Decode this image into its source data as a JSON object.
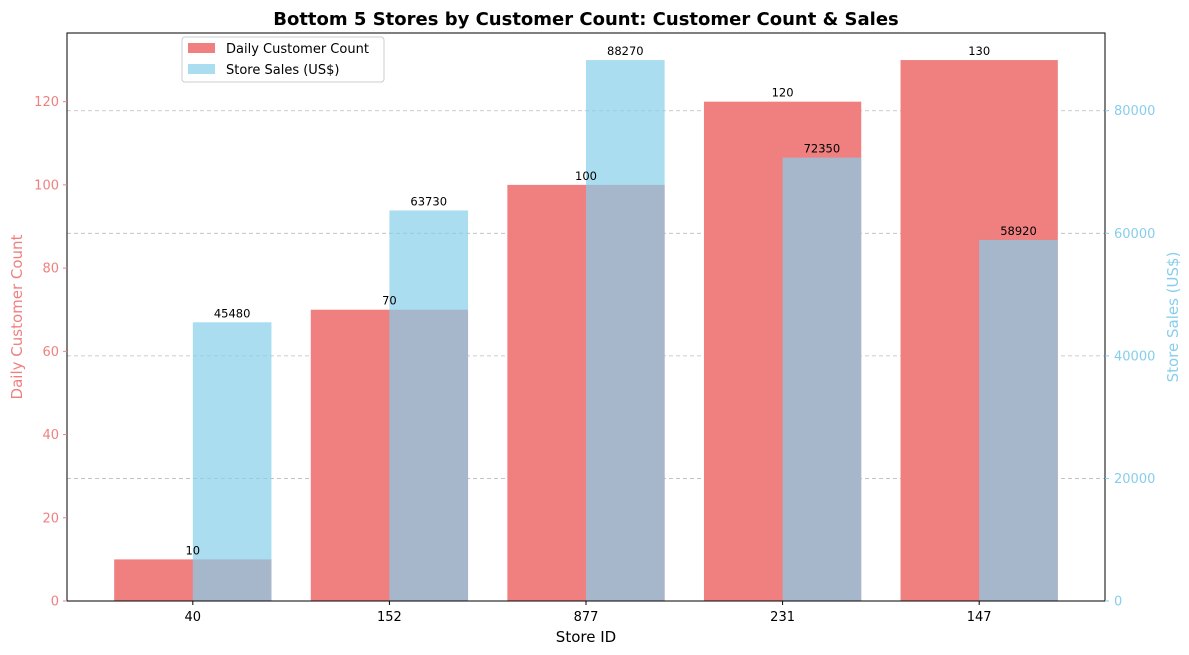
{
  "chart_data": {
    "type": "bar",
    "title": "Bottom 5 Stores by Customer Count: Customer Count & Sales",
    "xlabel": "Store ID",
    "ylabel": "Daily Customer Count",
    "y2label": "Store Sales (US$)",
    "categories": [
      "40",
      "152",
      "877",
      "231",
      "147"
    ],
    "xlim": [
      -0.64,
      4.64
    ],
    "ylim": [
      0,
      136.5
    ],
    "y2lim": [
      0,
      92683
    ],
    "yticks": [
      0,
      20,
      40,
      60,
      80,
      100,
      120
    ],
    "y2ticks": [
      0,
      20000,
      40000,
      60000,
      80000
    ],
    "grid": "horizontal dashed on secondary axis",
    "legend_position": "top-left",
    "series": [
      {
        "name": "Daily Customer Count",
        "axis": "left",
        "color": "#F08080",
        "values": [
          10,
          70,
          100,
          120,
          130
        ]
      },
      {
        "name": "Store Sales (US$)",
        "axis": "right",
        "color": "#87CEEB",
        "values": [
          45480,
          63730,
          88270,
          72350,
          58920
        ]
      }
    ]
  }
}
